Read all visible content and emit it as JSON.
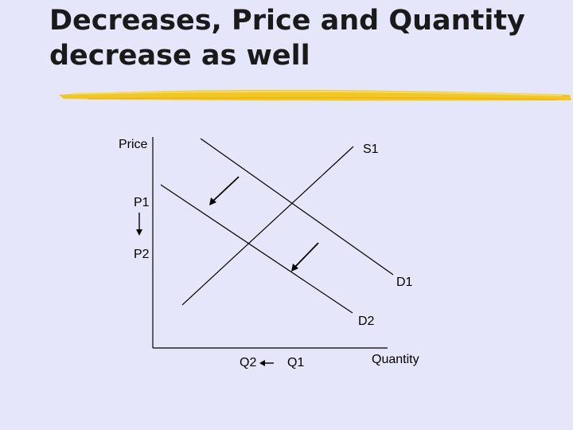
{
  "slide": {
    "title_line1": "Decreases, Price and Quantity",
    "title_line2": "decrease as well"
  },
  "diagram": {
    "y_axis_label": "Price",
    "x_axis_label": "Quantity",
    "price_labels": [
      "P1",
      "P2"
    ],
    "quantity_labels": [
      "Q2",
      "Q1"
    ],
    "curves": {
      "supply": "S1",
      "demand_original": "D1",
      "demand_new": "D2"
    },
    "colors": {
      "background": "#e6e6fa",
      "underline": "#f2c418",
      "lines": "#000000"
    }
  }
}
